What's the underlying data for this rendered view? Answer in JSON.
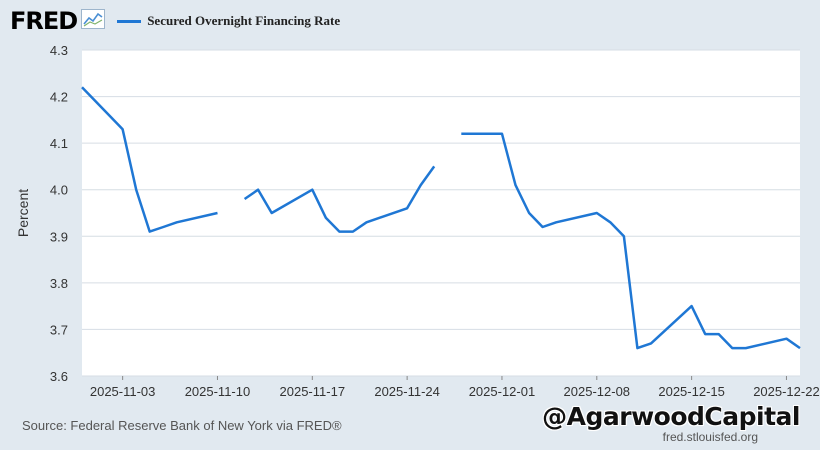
{
  "header": {
    "logo_text": "FRED",
    "logo_icon": "fred-chart-icon"
  },
  "footer": {
    "source": "Source: Federal Reserve Bank of New York via FRED®",
    "url": "fred.stlouisfed.org",
    "watermark": "@AgarwoodCapital"
  },
  "colors": {
    "series": "#1f77d4",
    "plot_bg": "#ffffff",
    "page_bg": "#e1e9f0",
    "grid": "#d6dde4"
  },
  "chart_data": {
    "type": "line",
    "title": "",
    "xlabel": "",
    "ylabel": "Percent",
    "ylim": [
      3.6,
      4.3
    ],
    "yticks": [
      3.6,
      3.7,
      3.8,
      3.9,
      4.0,
      4.1,
      4.2,
      4.3
    ],
    "ytick_labels": [
      "3.6",
      "3.7",
      "3.8",
      "3.9",
      "4.0",
      "4.1",
      "4.2",
      "4.3"
    ],
    "xlim": [
      "2025-10-31",
      "2025-12-23"
    ],
    "xticks": [
      "2025-11-03",
      "2025-11-10",
      "2025-11-17",
      "2025-11-24",
      "2025-12-01",
      "2025-12-08",
      "2025-12-15",
      "2025-12-22"
    ],
    "grid": true,
    "legend": "top-left",
    "series": [
      {
        "name": "Secured Overnight Financing Rate",
        "points": [
          [
            "2025-10-31",
            4.22
          ],
          [
            "2025-11-03",
            4.13
          ],
          [
            "2025-11-04",
            4.0
          ],
          [
            "2025-11-05",
            3.91
          ],
          [
            "2025-11-06",
            3.92
          ],
          [
            "2025-11-07",
            3.93
          ],
          [
            "2025-11-10",
            3.95
          ],
          [
            "2025-11-11",
            null
          ],
          [
            "2025-11-12",
            3.98
          ],
          [
            "2025-11-13",
            4.0
          ],
          [
            "2025-11-14",
            3.95
          ],
          [
            "2025-11-17",
            4.0
          ],
          [
            "2025-11-18",
            3.94
          ],
          [
            "2025-11-19",
            3.91
          ],
          [
            "2025-11-20",
            3.91
          ],
          [
            "2025-11-21",
            3.93
          ],
          [
            "2025-11-24",
            3.96
          ],
          [
            "2025-11-25",
            4.01
          ],
          [
            "2025-11-26",
            4.05
          ],
          [
            "2025-11-27",
            null
          ],
          [
            "2025-11-28",
            4.12
          ],
          [
            "2025-12-01",
            4.12
          ],
          [
            "2025-12-02",
            4.01
          ],
          [
            "2025-12-03",
            3.95
          ],
          [
            "2025-12-04",
            3.92
          ],
          [
            "2025-12-05",
            3.93
          ],
          [
            "2025-12-08",
            3.95
          ],
          [
            "2025-12-09",
            3.93
          ],
          [
            "2025-12-10",
            3.9
          ],
          [
            "2025-12-11",
            3.66
          ],
          [
            "2025-12-12",
            3.67
          ],
          [
            "2025-12-15",
            3.75
          ],
          [
            "2025-12-16",
            3.69
          ],
          [
            "2025-12-17",
            3.69
          ],
          [
            "2025-12-18",
            3.66
          ],
          [
            "2025-12-19",
            3.66
          ],
          [
            "2025-12-22",
            3.68
          ],
          [
            "2025-12-23",
            3.66
          ]
        ]
      }
    ]
  }
}
